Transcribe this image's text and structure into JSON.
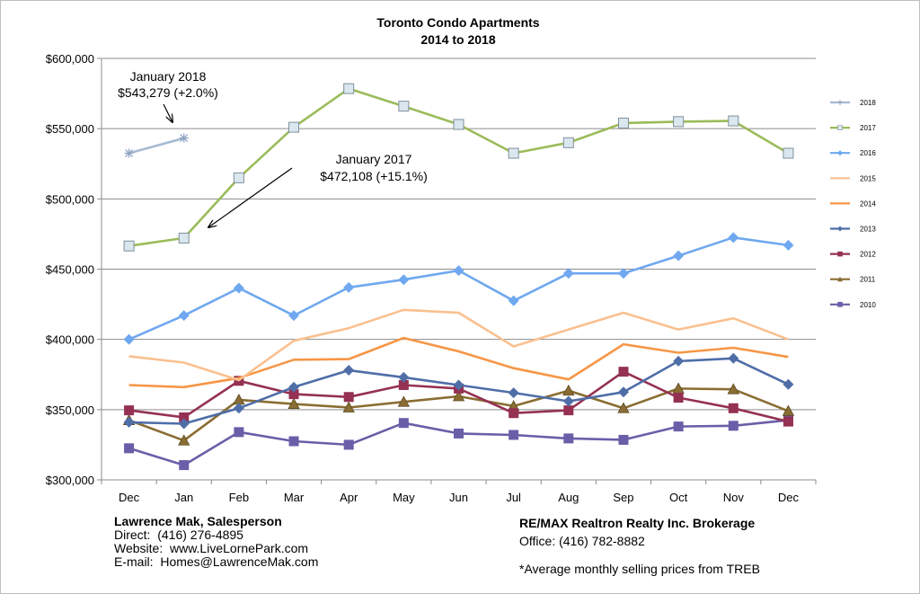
{
  "chart_data": {
    "type": "line",
    "title": "Toronto Condo Apartments",
    "subtitle": "2014 to 2018",
    "categories": [
      "Dec",
      "Jan",
      "Feb",
      "Mar",
      "Apr",
      "May",
      "Jun",
      "Jul",
      "Aug",
      "Sep",
      "Oct",
      "Nov",
      "Dec"
    ],
    "ylim": [
      300000,
      600000
    ],
    "yticks": [
      300000,
      350000,
      400000,
      450000,
      500000,
      550000,
      600000
    ],
    "ytick_labels": [
      "$300,000",
      "$350,000",
      "$400,000",
      "$450,000",
      "$500,000",
      "$550,000",
      "$600,000"
    ],
    "grid": true,
    "legend_position": "right",
    "series": [
      {
        "name": "2018",
        "color": "#a6b9d4",
        "marker": "star",
        "values": [
          532500,
          543279,
          null,
          null,
          null,
          null,
          null,
          null,
          null,
          null,
          null,
          null,
          null
        ]
      },
      {
        "name": "2017",
        "color": "#9bbb59",
        "marker": "square-light",
        "values": [
          466500,
          472108,
          515000,
          551000,
          578500,
          566000,
          553000,
          532500,
          540000,
          554000,
          555000,
          555500,
          532500
        ]
      },
      {
        "name": "2016",
        "color": "#6fa8f0",
        "marker": "diamond",
        "values": [
          400000,
          417000,
          436500,
          417000,
          437000,
          442500,
          449000,
          427500,
          447000,
          447000,
          459500,
          472500,
          467000
        ]
      },
      {
        "name": "2015",
        "color": "#fac090",
        "marker": "none",
        "values": [
          388000,
          383500,
          371000,
          399000,
          408000,
          421000,
          419000,
          395000,
          407000,
          419000,
          407000,
          415000,
          400000
        ]
      },
      {
        "name": "2014",
        "color": "#f79646",
        "marker": "none",
        "values": [
          367500,
          366000,
          372500,
          385500,
          386000,
          401000,
          391500,
          379500,
          371500,
          396500,
          390500,
          394000,
          387500
        ]
      },
      {
        "name": "2013",
        "color": "#4f6ea8",
        "marker": "diamond",
        "values": [
          341000,
          340000,
          351000,
          366000,
          378000,
          373000,
          367500,
          362000,
          356000,
          362500,
          384500,
          386500,
          368000
        ]
      },
      {
        "name": "2012",
        "color": "#953153",
        "marker": "square",
        "values": [
          349500,
          344500,
          370500,
          361000,
          359000,
          367500,
          365000,
          347500,
          349500,
          377000,
          358500,
          351000,
          341500
        ]
      },
      {
        "name": "2011",
        "color": "#8a6d32",
        "marker": "triangle",
        "values": [
          342500,
          328000,
          357000,
          354000,
          351500,
          355500,
          359500,
          352500,
          363500,
          351000,
          365000,
          364500,
          349000
        ]
      },
      {
        "name": "2010",
        "color": "#6b5ea8",
        "marker": "square",
        "values": [
          322500,
          310500,
          334000,
          327500,
          325000,
          340500,
          333000,
          332000,
          329500,
          328500,
          338000,
          338500,
          342500
        ]
      }
    ],
    "annotations": [
      {
        "lines": [
          "January 2018",
          "$543,279 (+2.0%)"
        ]
      },
      {
        "lines": [
          "January 2017",
          "$472,108 (+15.1%)"
        ]
      }
    ]
  },
  "footer": {
    "left": {
      "name": "Lawrence Mak, Salesperson",
      "direct": "Direct:  (416) 276-4895",
      "website": "Website:  www.LiveLornePark.com",
      "email": "E-mail:  Homes@LawrenceMak.com"
    },
    "right": {
      "brokerage": "RE/MAX Realtron Realty Inc. Brokerage",
      "office": "Office: (416) 782-8882",
      "note": "*Average monthly selling prices from TREB"
    }
  }
}
